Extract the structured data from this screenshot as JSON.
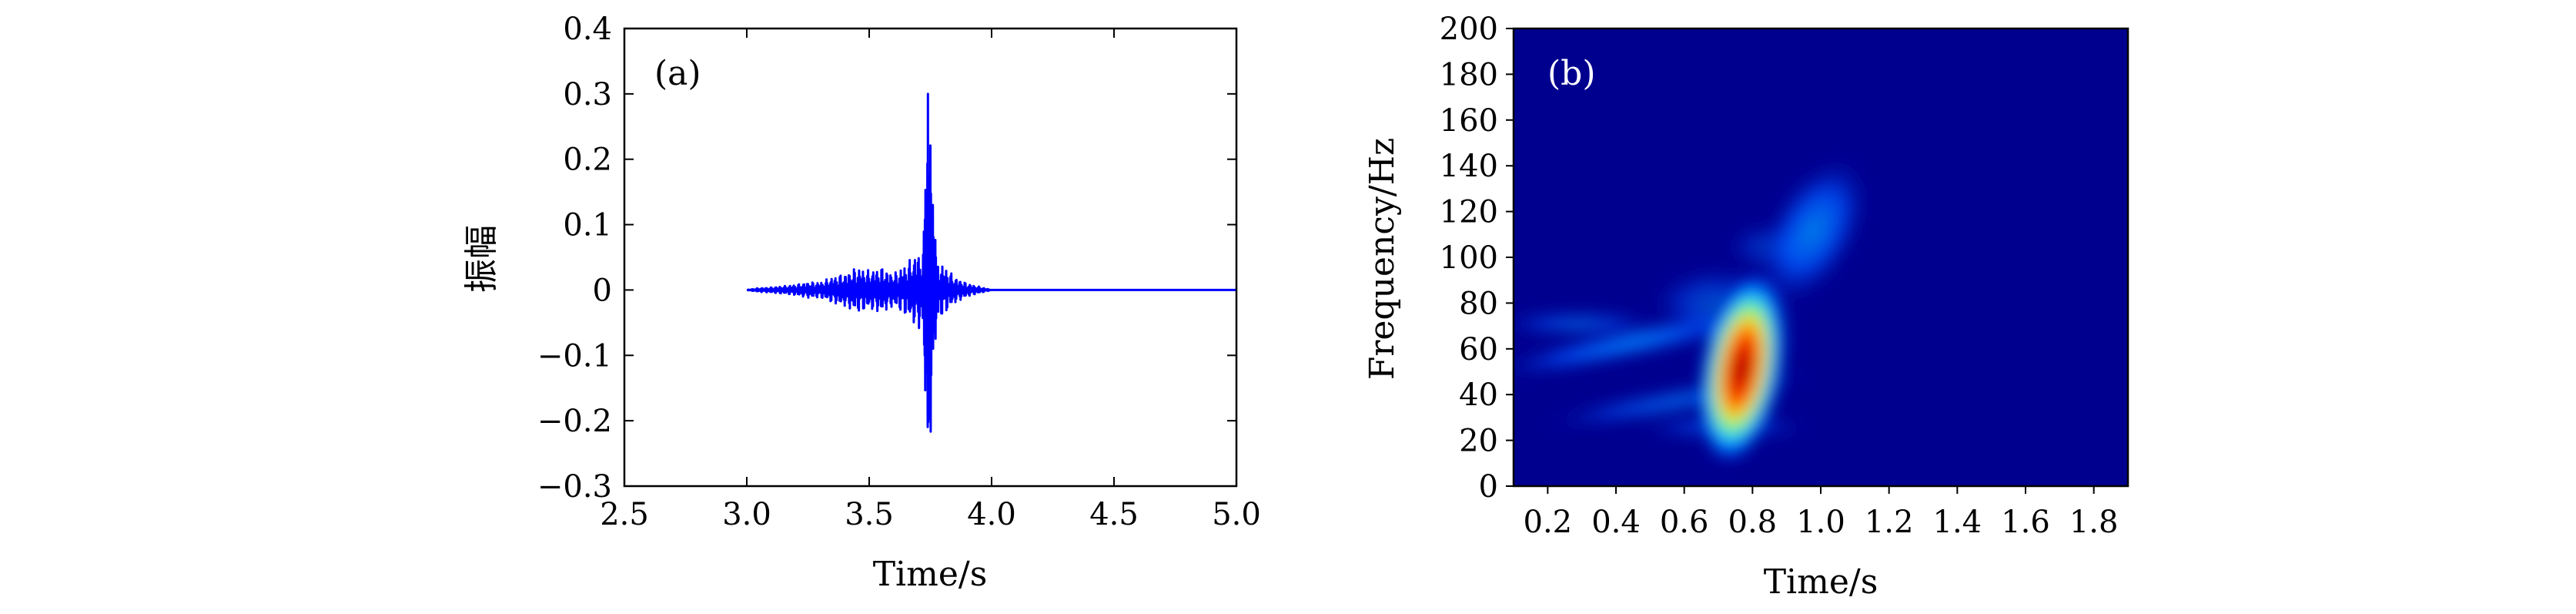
{
  "chart_data": [
    {
      "id": "a",
      "type": "line",
      "panel_label": "(a)",
      "xlabel": "Time/s",
      "ylabel": "振幅",
      "xlim": [
        2.5,
        5.0
      ],
      "ylim": [
        -0.3,
        0.4
      ],
      "xticks": [
        "2.5",
        "3.0",
        "3.5",
        "4.0",
        "4.5",
        "5.0"
      ],
      "yticks": [
        "0.4",
        "0.3",
        "0.2",
        "0.1",
        "0",
        "−0.1",
        "−0.2",
        "−0.3"
      ],
      "grid": false,
      "color": "#0000ff",
      "series": [
        {
          "x": [
            3.0,
            3.05,
            3.1,
            3.15,
            3.2,
            3.25,
            3.3,
            3.35,
            3.4,
            3.45,
            3.5,
            3.55,
            3.6,
            3.65,
            3.7,
            3.72,
            3.73,
            3.74,
            3.75,
            3.76,
            3.77,
            3.78,
            3.8,
            3.85,
            3.9,
            3.95,
            4.0,
            4.5,
            5.0
          ],
          "values": [
            0.0,
            0.003,
            -0.004,
            0.006,
            -0.008,
            0.012,
            -0.012,
            0.02,
            -0.025,
            0.035,
            -0.03,
            0.035,
            -0.025,
            0.04,
            -0.06,
            0.06,
            -0.18,
            0.3,
            -0.26,
            0.13,
            -0.09,
            0.05,
            -0.04,
            0.02,
            -0.01,
            0.005,
            0.0,
            0.0,
            0.0
          ]
        }
      ]
    },
    {
      "id": "b",
      "type": "heatmap",
      "panel_label": "(b)",
      "xlabel": "Time/s",
      "ylabel": "Frequency/Hz",
      "xlim": [
        0.1,
        1.9
      ],
      "ylim": [
        0,
        200
      ],
      "xticks": [
        "0.2",
        "0.4",
        "0.6",
        "0.8",
        "1.0",
        "1.2",
        "1.4",
        "1.6",
        "1.8"
      ],
      "yticks": [
        "200",
        "180",
        "160",
        "140",
        "120",
        "100",
        "80",
        "60",
        "40",
        "20",
        "0"
      ],
      "colormap": "jet",
      "background_color": "#00008f",
      "peak": {
        "time": 0.75,
        "frequency": 50
      },
      "blobs": [
        {
          "time": 0.75,
          "frequency": 52,
          "intensity": 1.0
        },
        {
          "time": 0.55,
          "frequency": 62,
          "intensity": 0.3
        },
        {
          "time": 0.3,
          "frequency": 70,
          "intensity": 0.2
        },
        {
          "time": 0.45,
          "frequency": 42,
          "intensity": 0.22
        },
        {
          "time": 0.55,
          "frequency": 28,
          "intensity": 0.18
        },
        {
          "time": 0.65,
          "frequency": 100,
          "intensity": 0.15
        },
        {
          "time": 0.9,
          "frequency": 110,
          "intensity": 0.2
        }
      ]
    }
  ]
}
